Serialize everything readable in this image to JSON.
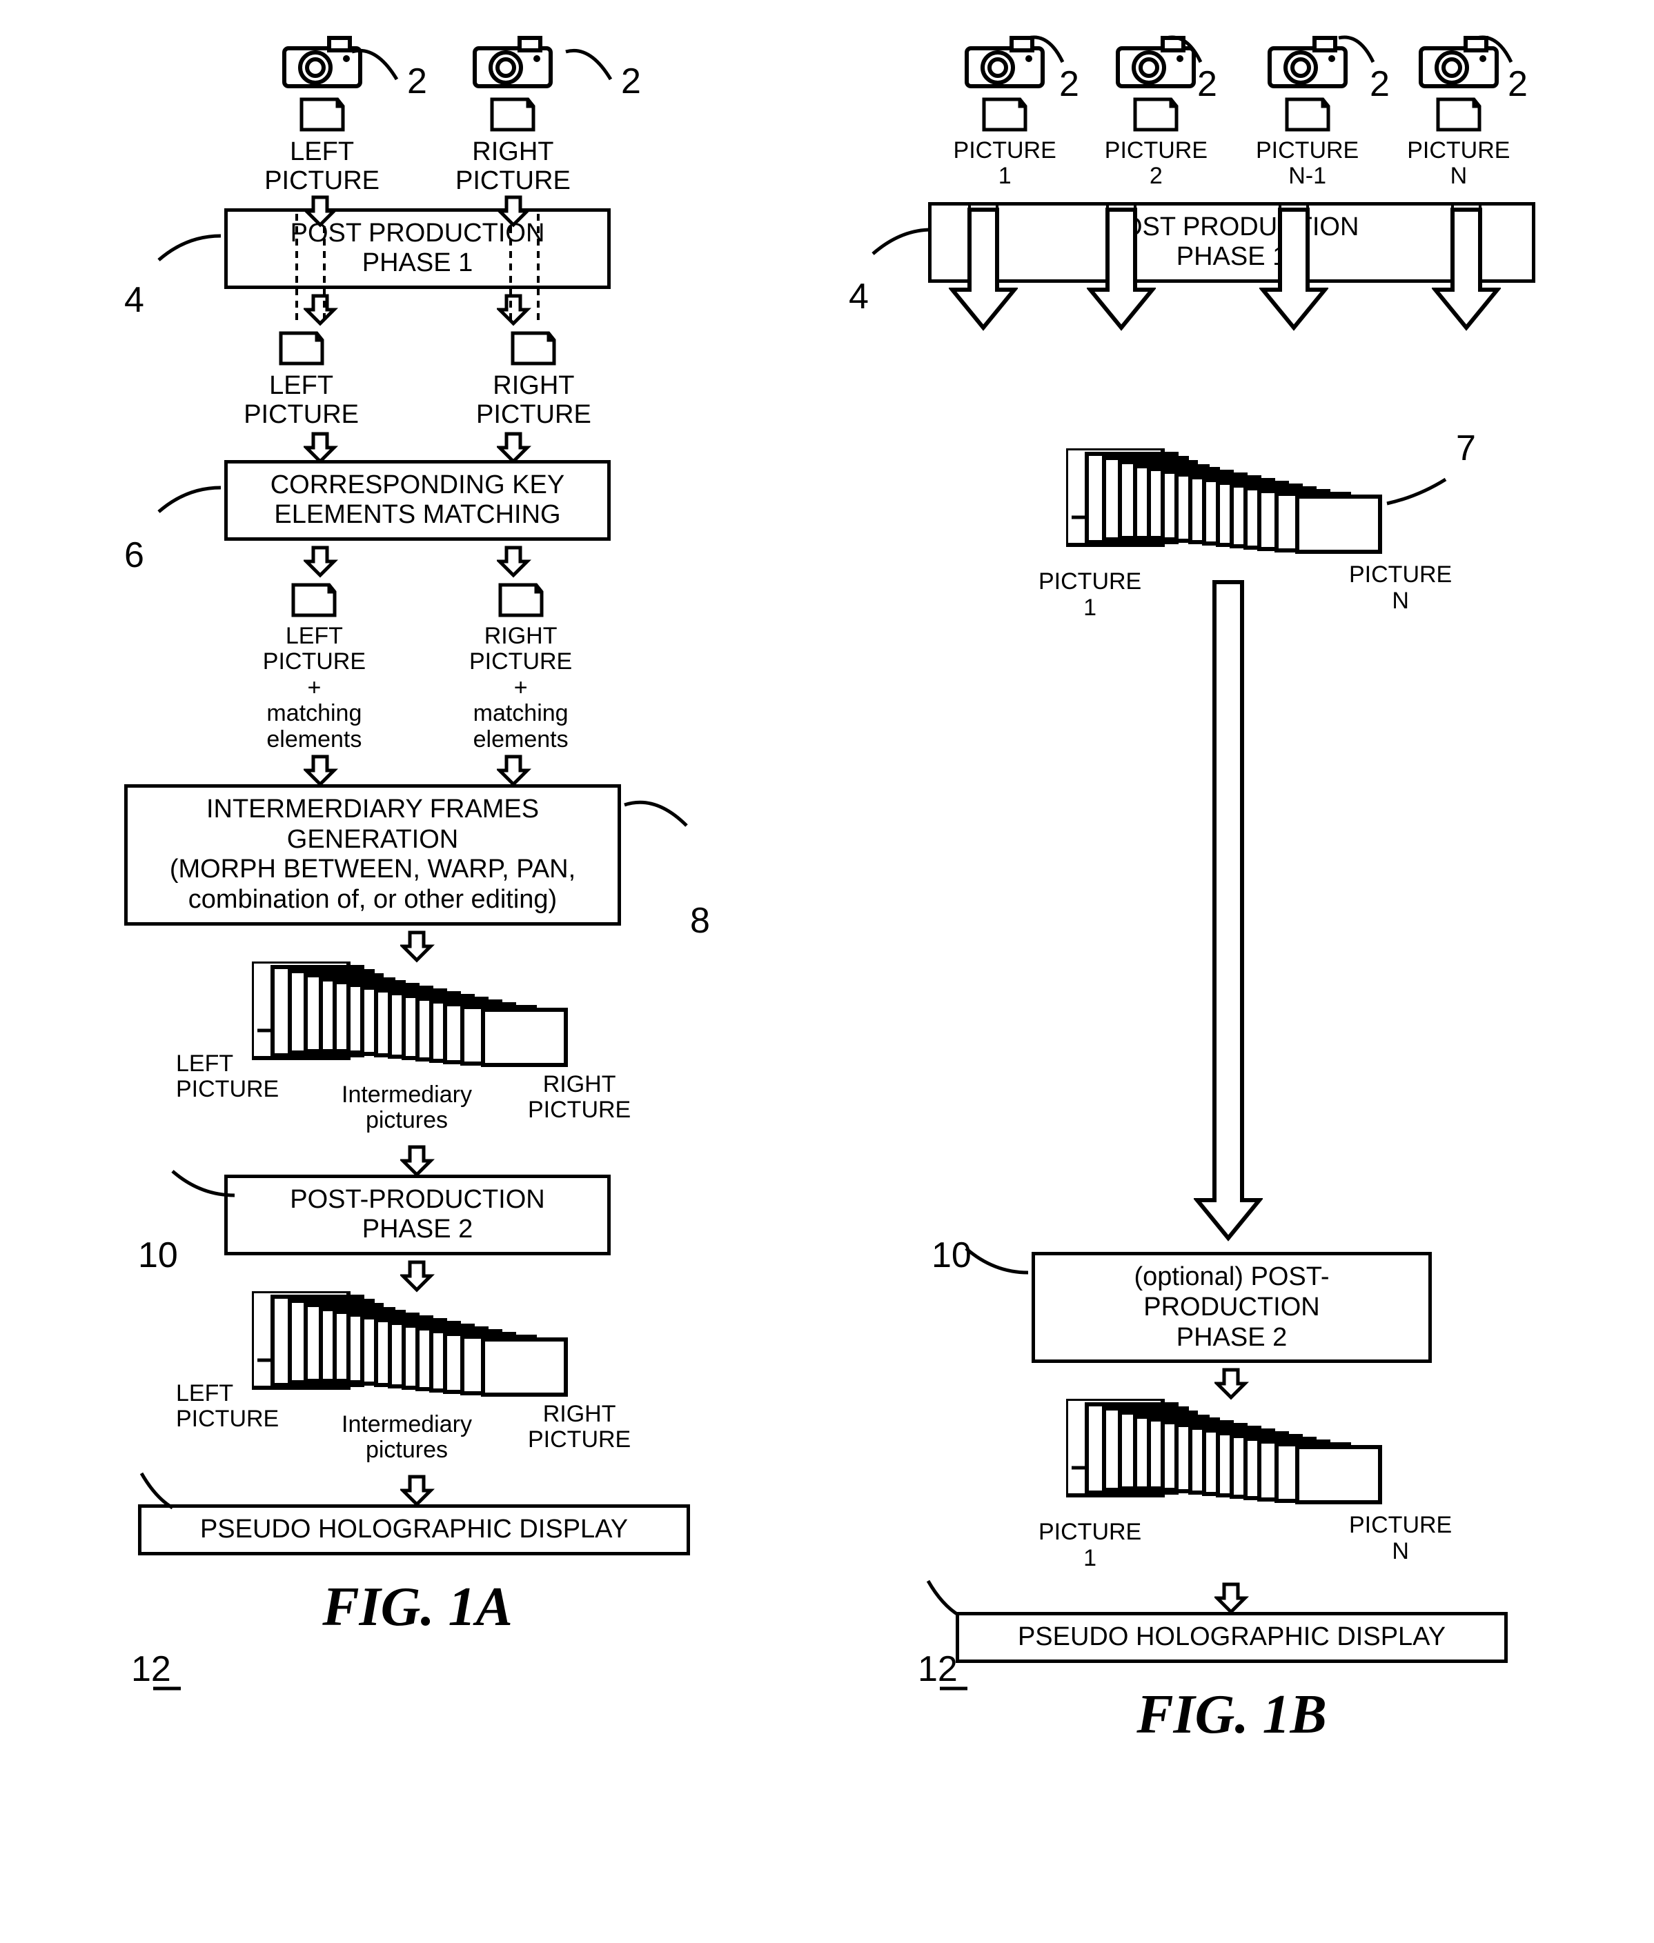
{
  "figA": {
    "title": "FIG. 1A",
    "refs": {
      "r2a": "2",
      "r2b": "2",
      "r4": "4",
      "r6": "6",
      "r8": "8",
      "r10": "10",
      "r12": "12"
    },
    "cameras": {
      "left_caption": "LEFT\nPICTURE",
      "right_caption": "RIGHT\nPICTURE"
    },
    "box4": "POST PRODUCTION\nPHASE 1",
    "after4": {
      "left": "LEFT\nPICTURE",
      "right": "RIGHT\nPICTURE"
    },
    "box6": "CORRESPONDING KEY\nELEMENTS MATCHING",
    "after6": {
      "left": "LEFT\nPICTURE\n+\nmatching\nelements",
      "right": "RIGHT\nPICTURE\n+\nmatching\nelements"
    },
    "box8": "INTERMERDIARY FRAMES GENERATION\n(MORPH BETWEEN, WARP, PAN,\ncombination of, or other editing)",
    "stack1": {
      "left": "LEFT\nPICTURE",
      "mid": "Intermediary\npictures",
      "right": "RIGHT\nPICTURE"
    },
    "box10": "POST-PRODUCTION\nPHASE 2",
    "stack2": {
      "left": "LEFT\nPICTURE",
      "mid": "Intermediary\npictures",
      "right": "RIGHT\nPICTURE"
    },
    "box12": "PSEUDO HOLOGRAPHIC DISPLAY"
  },
  "figB": {
    "title": "FIG. 1B",
    "refs": {
      "r2a": "2",
      "r2b": "2",
      "r2c": "2",
      "r2d": "2",
      "r4": "4",
      "r7": "7",
      "r10": "10",
      "r12": "12"
    },
    "cameras": {
      "c1": "PICTURE\n1",
      "c2": "PICTURE\n2",
      "c3": "PICTURE\nN-1",
      "c4": "PICTURE\nN"
    },
    "box4": "POST  PRODUCTION\nPHASE 1",
    "stack1": {
      "left": "PICTURE\n1",
      "right": "PICTURE\nN"
    },
    "box10": "(optional) POST-PRODUCTION\nPHASE 2",
    "stack2": {
      "left": "PICTURE\n1",
      "right": "PICTURE\nN"
    },
    "box12": "PSEUDO HOLOGRAPHIC DISPLAY"
  },
  "style": {
    "stroke": "#000000",
    "stroke_width": 5,
    "bg": "#ffffff",
    "font_main": "Arial",
    "font_title": "Times New Roman",
    "title_size": 80,
    "text_size": 38,
    "ref_size": 52
  }
}
